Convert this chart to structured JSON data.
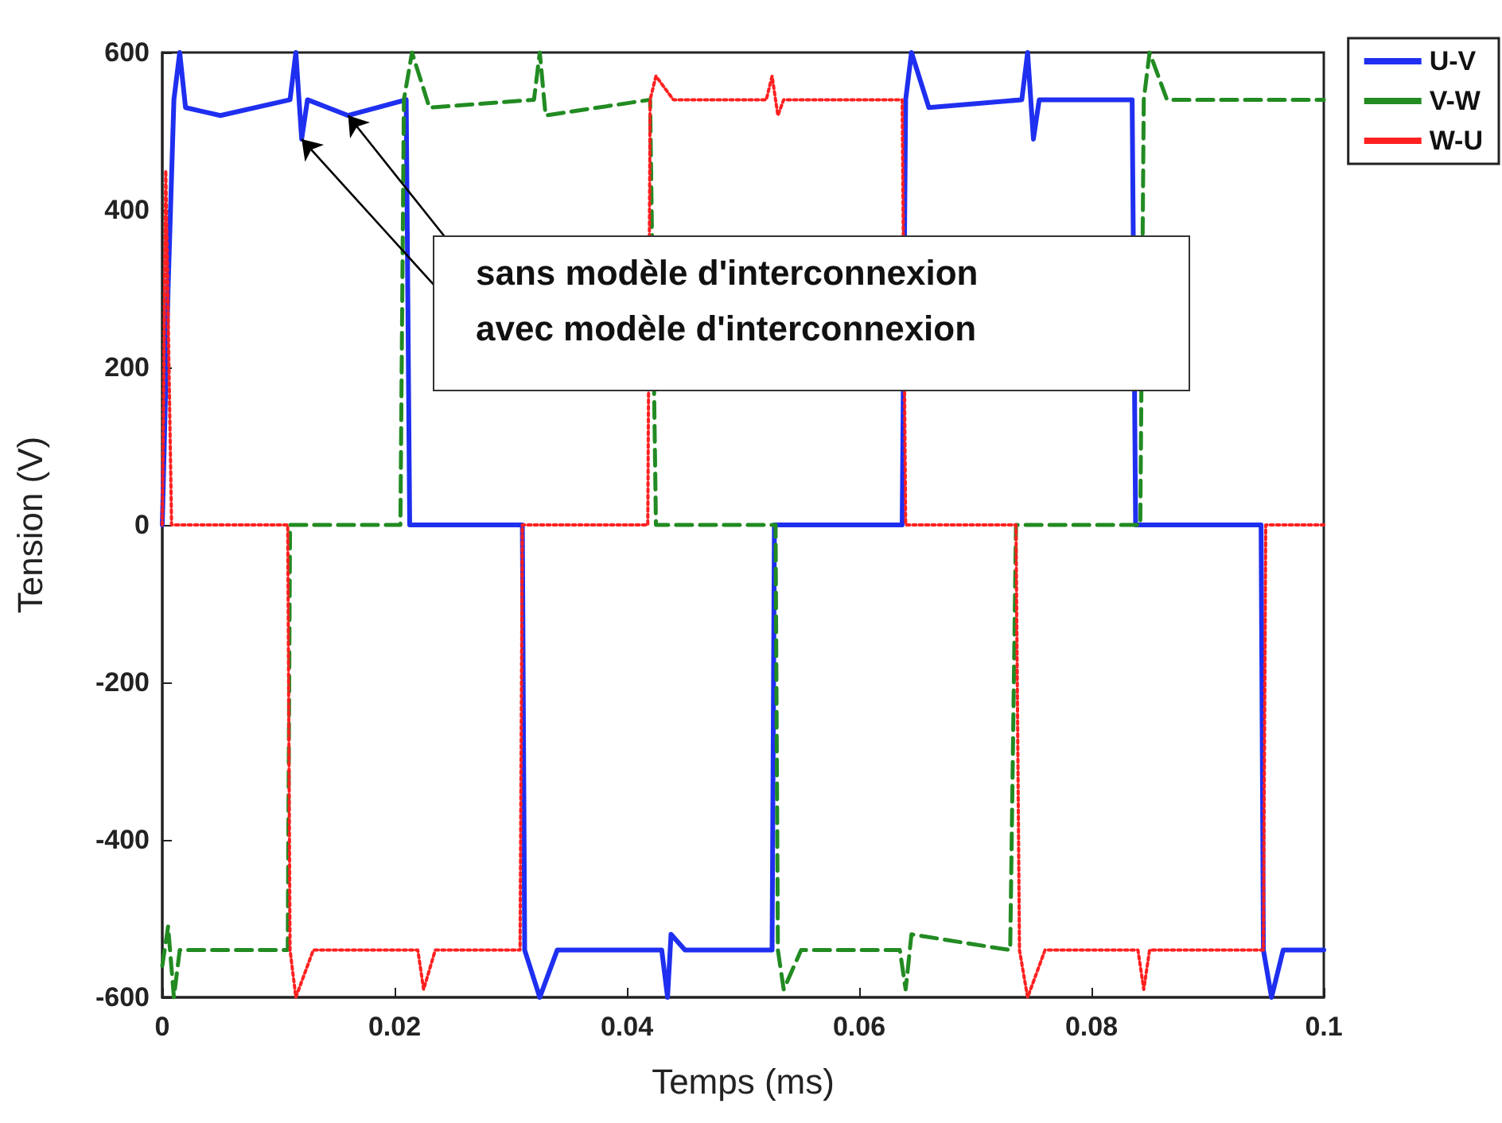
{
  "chart_data": {
    "type": "line",
    "xlabel": "Temps (ms)",
    "ylabel": "Tension (V)",
    "xlim": [
      0,
      0.1
    ],
    "xticks": [
      0,
      0.02,
      0.04,
      0.06,
      0.08,
      0.1
    ],
    "ylim": [
      -600,
      600
    ],
    "yticks": [
      -600,
      -400,
      -200,
      0,
      200,
      400,
      600
    ],
    "grid": false,
    "legend": "top right",
    "marker": "none",
    "annotations": [
      {
        "text": "sans modèle d'interconnexion",
        "x": 0.016,
        "y": 520
      },
      {
        "text": "avec modèle d'interconnexion",
        "x": 0.012,
        "y": 490
      }
    ],
    "series": [
      {
        "name": "U-V",
        "color": "#1f2ff0",
        "line_style": "solid",
        "x": [
          0,
          0.0005,
          0.001,
          0.0015,
          0.002,
          0.005,
          0.011,
          0.0115,
          0.012,
          0.0125,
          0.016,
          0.021,
          0.0213,
          0.031,
          0.0312,
          0.0325,
          0.034,
          0.043,
          0.0435,
          0.0438,
          0.045,
          0.0525,
          0.0527,
          0.0637,
          0.064,
          0.0645,
          0.066,
          0.074,
          0.0745,
          0.075,
          0.0755,
          0.0835,
          0.0838,
          0.0946,
          0.0948,
          0.0955,
          0.0965,
          0.1
        ],
        "values": [
          0,
          300,
          540,
          600,
          530,
          520,
          540,
          600,
          490,
          540,
          520,
          540,
          0,
          0,
          -540,
          -600,
          -540,
          -540,
          -600,
          -520,
          -540,
          -540,
          0,
          0,
          540,
          600,
          530,
          540,
          600,
          490,
          540,
          540,
          0,
          0,
          -540,
          -600,
          -540,
          -540
        ]
      },
      {
        "name": "V-W",
        "color": "#228b22",
        "line_style": "dashed",
        "x": [
          0,
          0.0005,
          0.001,
          0.0015,
          0.0108,
          0.011,
          0.0205,
          0.0208,
          0.0215,
          0.023,
          0.032,
          0.0325,
          0.033,
          0.042,
          0.0425,
          0.0528,
          0.053,
          0.0535,
          0.055,
          0.0635,
          0.064,
          0.0645,
          0.073,
          0.0735,
          0.0842,
          0.0845,
          0.085,
          0.0865,
          0.1
        ],
        "values": [
          -560,
          -510,
          -600,
          -540,
          -540,
          0,
          0,
          540,
          600,
          530,
          540,
          600,
          520,
          540,
          0,
          0,
          -540,
          -590,
          -540,
          -540,
          -590,
          -520,
          -540,
          0,
          0,
          540,
          600,
          540,
          540
        ]
      },
      {
        "name": "W-U",
        "color": "#ff2020",
        "line_style": "dotted",
        "x": [
          0,
          0.0003,
          0.0008,
          0.0108,
          0.011,
          0.0115,
          0.013,
          0.022,
          0.0225,
          0.0235,
          0.0308,
          0.031,
          0.0418,
          0.042,
          0.0425,
          0.044,
          0.052,
          0.0525,
          0.053,
          0.0535,
          0.0637,
          0.064,
          0.0735,
          0.0738,
          0.0745,
          0.076,
          0.084,
          0.0845,
          0.085,
          0.0948,
          0.095,
          0.1
        ],
        "values": [
          0,
          450,
          0,
          0,
          -540,
          -600,
          -540,
          -540,
          -590,
          -540,
          -540,
          0,
          0,
          540,
          570,
          540,
          540,
          570,
          520,
          540,
          540,
          0,
          0,
          -540,
          -600,
          -540,
          -540,
          -590,
          -540,
          -540,
          0,
          0
        ]
      }
    ]
  }
}
